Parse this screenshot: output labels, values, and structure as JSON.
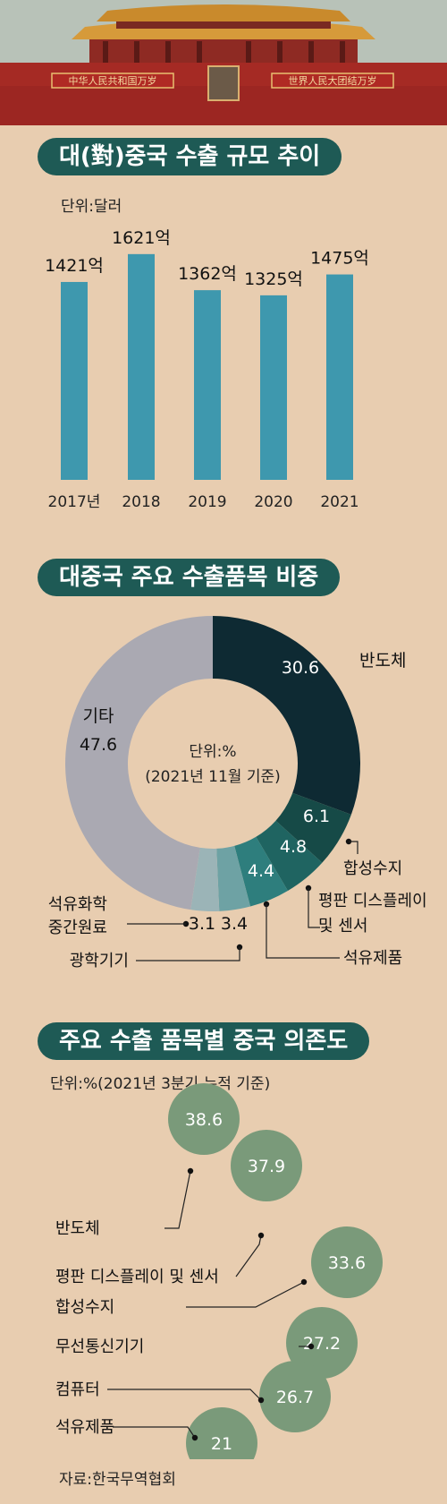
{
  "header": {
    "banner_left": "中华人民共和国万岁",
    "banner_right": "世界人民大团结万岁"
  },
  "section1": {
    "title": "대(對)중국 수출 규모 추이",
    "unit": "단위:달러"
  },
  "section2": {
    "title": "대중국 주요 수출품목 비중",
    "center_line1": "단위:%",
    "center_line2": "(2021년 11월 기준)"
  },
  "section3": {
    "title": "주요 수출 품목별 중국 의존도",
    "unit": "단위:%(2021년 3분기 누적 기준)"
  },
  "source": "자료:한국무역협회",
  "colors": {
    "bar": "#3e98ae",
    "title_bg": "#1e5a55",
    "bubble": "#7a9a7a",
    "background": "#e8cdb0"
  },
  "chart_data": [
    {
      "type": "bar",
      "categories": [
        "2017년",
        "2018",
        "2019",
        "2020",
        "2021"
      ],
      "values": [
        1421,
        1621,
        1362,
        1325,
        1475
      ],
      "value_labels": [
        "1421억",
        "1621억",
        "1362억",
        "1325억",
        "1475억"
      ],
      "title": "대(對)중국 수출 규모 추이",
      "unit": "단위:달러",
      "ylim": [
        0,
        1800
      ]
    },
    {
      "type": "pie",
      "title": "대중국 주요 수출품목 비중",
      "slices": [
        {
          "label": "반도체",
          "value": 30.6,
          "value_text": "30.6",
          "color": "#0e2a33"
        },
        {
          "label": "합성수지",
          "value": 6.1,
          "value_text": "6.1",
          "color": "#164a47"
        },
        {
          "label": "평판 디스플레이 및 센서",
          "value": 4.8,
          "value_text": "4.8",
          "color": "#1f6461"
        },
        {
          "label": "석유제품",
          "value": 4.4,
          "value_text": "4.4",
          "color": "#2e7e7d"
        },
        {
          "label": "광학기기",
          "value": 3.4,
          "value_text": "3.4",
          "color": "#6ea2a4"
        },
        {
          "label": "석유화학 중간원료",
          "value": 3.1,
          "value_text": "3.1",
          "color": "#9bb4b7"
        },
        {
          "label": "기타",
          "value": 47.6,
          "value_text": "47.6",
          "color": "#aaa9b2"
        }
      ]
    },
    {
      "type": "bubble",
      "title": "주요 수출 품목별 중국 의존도",
      "unit": "단위:%(2021년 3분기 누적 기준)",
      "categories": [
        "반도체",
        "평판 디스플레이 및 센서",
        "합성수지",
        "무선통신기기",
        "컴퓨터",
        "석유제품"
      ],
      "values": [
        38.6,
        37.9,
        33.6,
        27.2,
        26.7,
        21
      ],
      "value_labels": [
        "38.6",
        "37.9",
        "33.6",
        "27.2",
        "26.7",
        "21"
      ]
    }
  ]
}
